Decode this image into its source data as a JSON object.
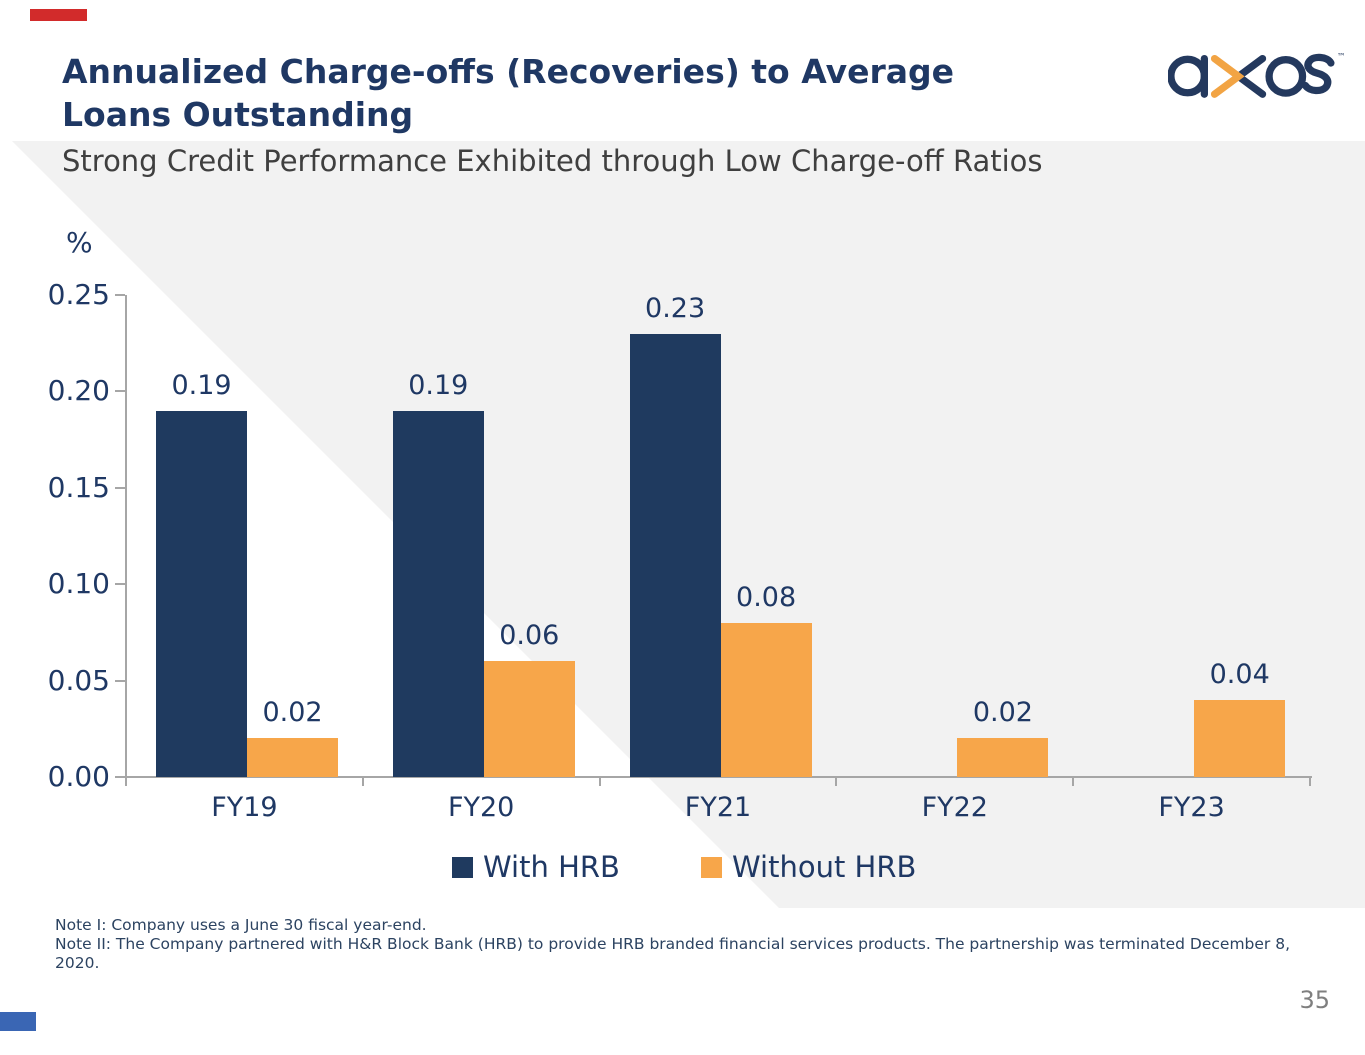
{
  "slide": {
    "title_line1": "Annualized Charge-offs (Recoveries) to Average",
    "title_line2": "Loans Outstanding",
    "subtitle": "Strong Credit Performance Exhibited through Low Charge-off Ratios",
    "note1": "Note I: Company uses a June 30 fiscal year-end.",
    "note2": "Note II: The Company partnered with H&R Block Bank (HRB) to provide HRB branded financial services products. The partnership was terminated December 8, 2020.",
    "page_number": "35",
    "logo_name": "axos",
    "logo_tm": "™"
  },
  "colors": {
    "navy": "#1F3A5F",
    "orange": "#F7A64A",
    "title_navy": "#1F3864",
    "logo_navy": "#24395E",
    "logo_orange": "#F2A444",
    "band_gray": "#F2F2F2",
    "axis_gray": "#A6A6A6",
    "red_accent": "#D22B2B",
    "blue_accent": "#3A66B4"
  },
  "chart_data": {
    "type": "bar",
    "title": "Annualized Charge-offs (Recoveries) to Average Loans Outstanding",
    "y_unit_label": "%",
    "xlabel": "",
    "ylabel": "%",
    "categories": [
      "FY19",
      "FY20",
      "FY21",
      "FY22",
      "FY23"
    ],
    "series": [
      {
        "name": "With HRB",
        "color": "#1F3A5F",
        "values": [
          0.19,
          0.19,
          0.23,
          null,
          null
        ]
      },
      {
        "name": "Without HRB",
        "color": "#F7A64A",
        "values": [
          0.02,
          0.06,
          0.08,
          0.02,
          0.04
        ]
      }
    ],
    "ylim": [
      0,
      0.25
    ],
    "ytick_step": 0.05,
    "ytick_labels": [
      "0.00",
      "0.05",
      "0.10",
      "0.15",
      "0.20",
      "0.25"
    ],
    "grid": false,
    "value_labels": true,
    "legend_position": "bottom"
  }
}
